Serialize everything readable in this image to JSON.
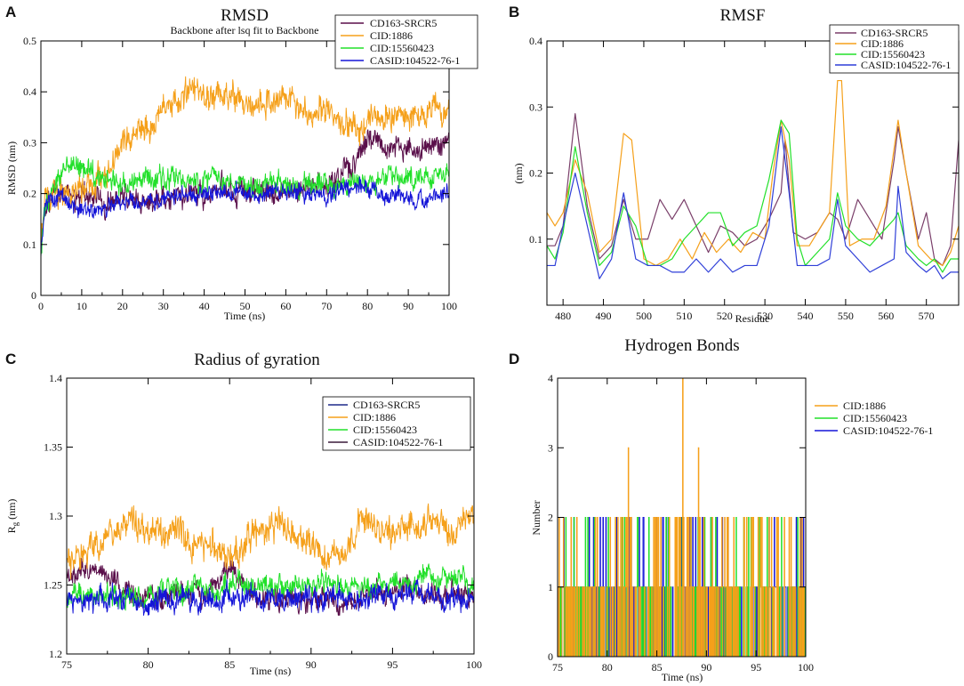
{
  "colors": {
    "cd163": "#5a0f4a",
    "cid1886": "#f5a01a",
    "cid15560423": "#22e02a",
    "casid": "#1515d8",
    "rmsf_cd163": "#7a3f6a",
    "rmsf_casid": "#2f3fd8",
    "rg_casid_legend": "#3a1a3a"
  },
  "panel_letters": [
    "A",
    "B",
    "C",
    "D"
  ],
  "chart_data": [
    {
      "id": "A",
      "type": "line",
      "title": "RMSD",
      "subtitle": "Backbone after lsq fit to Backbone",
      "xlabel": "Time (ns)",
      "ylabel": "RMSD (nm)",
      "xlim": [
        0,
        100
      ],
      "ylim": [
        0,
        0.5
      ],
      "xticks": [
        0,
        10,
        20,
        30,
        40,
        50,
        60,
        70,
        80,
        90,
        100
      ],
      "yticks": [
        0,
        0.1,
        0.2,
        0.3,
        0.4,
        0.5
      ],
      "ytick_labels": [
        "0",
        "0.1",
        "0.2",
        "0.3",
        "0.4",
        "0.5"
      ],
      "legend": [
        "CD163-SRCR5",
        "CID:1886",
        "CID:15560423",
        "CASID:104522-76-1"
      ],
      "legend_position": "top-right",
      "noise_style": "dense",
      "series": [
        {
          "name": "CD163-SRCR5",
          "color_key": "cd163",
          "noise": 0.018,
          "x": [
            0,
            1,
            3,
            6,
            10,
            15,
            20,
            25,
            30,
            35,
            40,
            45,
            50,
            55,
            60,
            65,
            70,
            74,
            76,
            78,
            80,
            83,
            86,
            90,
            93,
            96,
            98,
            100
          ],
          "y": [
            0.09,
            0.17,
            0.19,
            0.2,
            0.19,
            0.19,
            0.18,
            0.18,
            0.19,
            0.2,
            0.2,
            0.21,
            0.21,
            0.2,
            0.21,
            0.21,
            0.22,
            0.25,
            0.25,
            0.28,
            0.3,
            0.3,
            0.29,
            0.28,
            0.29,
            0.3,
            0.29,
            0.32
          ]
        },
        {
          "name": "CID:1886",
          "color_key": "cid1886",
          "noise": 0.02,
          "x": [
            0,
            1,
            3,
            6,
            10,
            15,
            18,
            20,
            23,
            26,
            30,
            35,
            40,
            45,
            50,
            55,
            60,
            65,
            70,
            75,
            78,
            80,
            85,
            90,
            95,
            100
          ],
          "y": [
            0.09,
            0.19,
            0.2,
            0.2,
            0.21,
            0.23,
            0.27,
            0.3,
            0.32,
            0.33,
            0.37,
            0.39,
            0.4,
            0.39,
            0.38,
            0.38,
            0.38,
            0.37,
            0.37,
            0.34,
            0.31,
            0.35,
            0.35,
            0.35,
            0.36,
            0.37
          ]
        },
        {
          "name": "CID:15560423",
          "color_key": "cid15560423",
          "noise": 0.016,
          "x": [
            0,
            1,
            3,
            5,
            7,
            9,
            12,
            15,
            20,
            25,
            30,
            35,
            40,
            50,
            60,
            70,
            75,
            80,
            85,
            90,
            95,
            100
          ],
          "y": [
            0.09,
            0.18,
            0.21,
            0.23,
            0.27,
            0.26,
            0.24,
            0.23,
            0.22,
            0.23,
            0.23,
            0.22,
            0.22,
            0.22,
            0.22,
            0.22,
            0.21,
            0.22,
            0.24,
            0.23,
            0.23,
            0.24
          ]
        },
        {
          "name": "CASID:104522-76-1",
          "color_key": "casid",
          "noise": 0.012,
          "x": [
            0,
            1,
            3,
            5,
            10,
            15,
            20,
            25,
            30,
            35,
            40,
            50,
            60,
            70,
            75,
            80,
            85,
            90,
            95,
            100
          ],
          "y": [
            0.09,
            0.17,
            0.19,
            0.19,
            0.17,
            0.17,
            0.18,
            0.18,
            0.19,
            0.2,
            0.2,
            0.2,
            0.2,
            0.2,
            0.21,
            0.21,
            0.2,
            0.19,
            0.19,
            0.2
          ]
        }
      ]
    },
    {
      "id": "B",
      "type": "line",
      "title": "RMSF",
      "subtitle": "",
      "xlabel": "Residue",
      "ylabel": "(nm)",
      "xlim": [
        476,
        578
      ],
      "ylim": [
        0,
        0.4
      ],
      "xticks": [
        480,
        490,
        500,
        510,
        520,
        530,
        540,
        550,
        560,
        570
      ],
      "yticks": [
        0.1,
        0.2,
        0.3,
        0.4
      ],
      "ytick_labels": [
        "0.1",
        "0.2",
        "0.3",
        "0.4"
      ],
      "legend": [
        "CD163-SRCR5",
        "CID:1886",
        "CID:15560423",
        "CASID:104522-76-1"
      ],
      "legend_position": "top-right",
      "noise_style": "none",
      "series": [
        {
          "name": "CD163-SRCR5",
          "color_key": "rmsf_cd163",
          "x": [
            476,
            478,
            480,
            483,
            486,
            489,
            492,
            495,
            498,
            501,
            504,
            507,
            510,
            513,
            516,
            519,
            522,
            525,
            528,
            531,
            534,
            535,
            537,
            540,
            543,
            546,
            548,
            550,
            553,
            556,
            559,
            562,
            563,
            565,
            568,
            570,
            572,
            574,
            576,
            578
          ],
          "y": [
            0.09,
            0.09,
            0.12,
            0.29,
            0.15,
            0.07,
            0.09,
            0.16,
            0.1,
            0.1,
            0.16,
            0.13,
            0.16,
            0.12,
            0.08,
            0.12,
            0.11,
            0.09,
            0.1,
            0.13,
            0.17,
            0.25,
            0.11,
            0.1,
            0.11,
            0.14,
            0.13,
            0.1,
            0.16,
            0.13,
            0.1,
            0.22,
            0.27,
            0.2,
            0.1,
            0.14,
            0.07,
            0.06,
            0.09,
            0.25
          ]
        },
        {
          "name": "CID:1886",
          "color_key": "cid1886",
          "x": [
            476,
            478,
            480,
            483,
            486,
            489,
            492,
            495,
            497,
            500,
            503,
            506,
            509,
            512,
            515,
            518,
            521,
            524,
            527,
            530,
            532,
            534,
            536,
            538,
            541,
            544,
            546,
            548,
            549,
            551,
            554,
            557,
            560,
            563,
            565,
            568,
            571,
            574,
            576,
            578
          ],
          "y": [
            0.14,
            0.12,
            0.14,
            0.22,
            0.17,
            0.08,
            0.1,
            0.26,
            0.25,
            0.07,
            0.06,
            0.07,
            0.1,
            0.07,
            0.11,
            0.08,
            0.1,
            0.08,
            0.11,
            0.1,
            0.2,
            0.28,
            0.22,
            0.09,
            0.09,
            0.12,
            0.14,
            0.34,
            0.34,
            0.09,
            0.1,
            0.1,
            0.15,
            0.28,
            0.2,
            0.09,
            0.07,
            0.06,
            0.08,
            0.12
          ]
        },
        {
          "name": "CID:15560423",
          "color_key": "cid15560423",
          "x": [
            476,
            478,
            480,
            483,
            486,
            489,
            492,
            495,
            498,
            501,
            504,
            507,
            510,
            513,
            516,
            519,
            522,
            525,
            528,
            531,
            534,
            536,
            538,
            540,
            543,
            546,
            548,
            550,
            553,
            556,
            559,
            562,
            563,
            565,
            568,
            570,
            572,
            574,
            576,
            578
          ],
          "y": [
            0.09,
            0.07,
            0.11,
            0.24,
            0.14,
            0.06,
            0.08,
            0.15,
            0.12,
            0.06,
            0.06,
            0.07,
            0.1,
            0.12,
            0.14,
            0.14,
            0.09,
            0.11,
            0.12,
            0.19,
            0.28,
            0.26,
            0.1,
            0.06,
            0.08,
            0.1,
            0.17,
            0.12,
            0.1,
            0.09,
            0.11,
            0.13,
            0.14,
            0.09,
            0.07,
            0.06,
            0.07,
            0.05,
            0.07,
            0.07
          ]
        },
        {
          "name": "CASID:104522-76-1",
          "color_key": "rmsf_casid",
          "x": [
            476,
            478,
            480,
            483,
            486,
            489,
            492,
            495,
            498,
            501,
            504,
            507,
            510,
            513,
            516,
            519,
            522,
            525,
            528,
            531,
            534,
            536,
            538,
            540,
            543,
            546,
            548,
            550,
            553,
            556,
            559,
            562,
            563,
            565,
            568,
            570,
            572,
            574,
            576,
            578
          ],
          "y": [
            0.06,
            0.06,
            0.12,
            0.2,
            0.12,
            0.04,
            0.07,
            0.17,
            0.07,
            0.06,
            0.06,
            0.05,
            0.05,
            0.07,
            0.05,
            0.07,
            0.05,
            0.06,
            0.06,
            0.12,
            0.27,
            0.17,
            0.06,
            0.06,
            0.06,
            0.07,
            0.16,
            0.09,
            0.07,
            0.05,
            0.06,
            0.07,
            0.18,
            0.08,
            0.06,
            0.05,
            0.06,
            0.04,
            0.05,
            0.05
          ]
        }
      ]
    },
    {
      "id": "C",
      "type": "line",
      "title": "Radius of gyration",
      "subtitle": "",
      "xlabel": "Time (ns)",
      "ylabel": "Rg (nm)",
      "ylabel_main": "R",
      "ylabel_sub": "g",
      "ylabel_rest": " (nm)",
      "xlim": [
        75,
        100
      ],
      "ylim": [
        1.2,
        1.4
      ],
      "xticks": [
        75,
        80,
        85,
        90,
        95,
        100
      ],
      "yticks": [
        1.2,
        1.25,
        1.3,
        1.35,
        1.4
      ],
      "ytick_labels": [
        "1.2",
        "1.25",
        "1.3",
        "1.35",
        "1.4"
      ],
      "legend": [
        "CD163-SRCR5",
        "CID:1886",
        "CID:15560423",
        "CASID:104522-76-1"
      ],
      "legend_colors": [
        "#1f2a8a",
        "cid1886",
        "cid15560423",
        "rg_casid_legend"
      ],
      "legend_position": "top-right",
      "noise_style": "dense",
      "series": [
        {
          "name": "CD163-SRCR5",
          "color_key": "cd163",
          "noise": 0.006,
          "x": [
            75,
            76,
            77,
            78,
            79,
            80,
            81,
            82,
            83,
            84,
            85,
            86,
            87,
            88,
            89,
            90,
            91,
            92,
            93,
            94,
            95,
            96,
            97,
            98,
            99,
            100
          ],
          "y": [
            1.255,
            1.262,
            1.26,
            1.252,
            1.245,
            1.24,
            1.242,
            1.245,
            1.244,
            1.25,
            1.265,
            1.248,
            1.24,
            1.24,
            1.242,
            1.24,
            1.24,
            1.238,
            1.24,
            1.245,
            1.243,
            1.246,
            1.245,
            1.24,
            1.246,
            1.244
          ]
        },
        {
          "name": "CID:1886",
          "color_key": "cid1886",
          "noise": 0.008,
          "x": [
            75,
            76,
            77,
            78,
            79,
            80,
            81,
            82,
            83,
            84,
            85,
            86,
            87,
            88,
            89,
            90,
            91,
            92,
            93,
            94,
            95,
            96,
            97,
            98,
            99,
            100
          ],
          "y": [
            1.265,
            1.272,
            1.28,
            1.29,
            1.298,
            1.29,
            1.285,
            1.29,
            1.28,
            1.275,
            1.27,
            1.282,
            1.29,
            1.298,
            1.285,
            1.28,
            1.27,
            1.275,
            1.295,
            1.29,
            1.285,
            1.29,
            1.295,
            1.292,
            1.29,
            1.3
          ]
        },
        {
          "name": "CID:15560423",
          "color_key": "cid15560423",
          "noise": 0.006,
          "x": [
            75,
            76,
            77,
            78,
            79,
            80,
            81,
            82,
            83,
            84,
            85,
            86,
            87,
            88,
            89,
            90,
            91,
            92,
            93,
            94,
            95,
            96,
            97,
            98,
            99,
            100
          ],
          "y": [
            1.24,
            1.242,
            1.244,
            1.242,
            1.24,
            1.244,
            1.245,
            1.242,
            1.246,
            1.245,
            1.25,
            1.252,
            1.25,
            1.248,
            1.25,
            1.25,
            1.252,
            1.248,
            1.25,
            1.252,
            1.25,
            1.252,
            1.255,
            1.255,
            1.254,
            1.252
          ]
        },
        {
          "name": "CASID:104522-76-1",
          "color_key": "casid",
          "noise": 0.006,
          "x": [
            75,
            76,
            77,
            78,
            79,
            80,
            81,
            82,
            83,
            84,
            85,
            86,
            87,
            88,
            89,
            90,
            91,
            92,
            93,
            94,
            95,
            96,
            97,
            98,
            99,
            100
          ],
          "y": [
            1.238,
            1.24,
            1.238,
            1.24,
            1.24,
            1.238,
            1.24,
            1.242,
            1.238,
            1.24,
            1.24,
            1.24,
            1.238,
            1.24,
            1.242,
            1.238,
            1.24,
            1.24,
            1.238,
            1.245,
            1.242,
            1.242,
            1.245,
            1.242,
            1.24,
            1.243
          ]
        }
      ]
    },
    {
      "id": "D",
      "type": "line",
      "title": "Hydrogen Bonds",
      "subtitle": "",
      "xlabel": "Time (ns)",
      "ylabel": "Number",
      "xlim": [
        75,
        100
      ],
      "ylim": [
        0,
        4
      ],
      "xticks": [
        75,
        80,
        85,
        90,
        95,
        100
      ],
      "yticks": [
        0,
        1,
        2,
        3,
        4
      ],
      "ytick_labels": [
        "0",
        "1",
        "2",
        "3",
        "4"
      ],
      "legend": [
        "CID:1886",
        "CID:15560423",
        "CASID:104522-76-1"
      ],
      "legend_position": "right",
      "noise_style": "spikes",
      "series": [
        {
          "name": "CASID:104522-76-1",
          "color_key": "casid",
          "density": 0.5,
          "two_prob": 0.12,
          "spike_x": []
        },
        {
          "name": "CID:15560423",
          "color_key": "cid15560423",
          "density": 0.3,
          "two_prob": 0.2,
          "spike_x": []
        },
        {
          "name": "CID:1886",
          "color_key": "cid1886",
          "density": 0.35,
          "two_prob": 0.35,
          "spike_x": [
            {
              "x": 82.1,
              "y": 3
            },
            {
              "x": 87.6,
              "y": 4
            },
            {
              "x": 89.2,
              "y": 3
            }
          ]
        }
      ]
    }
  ]
}
